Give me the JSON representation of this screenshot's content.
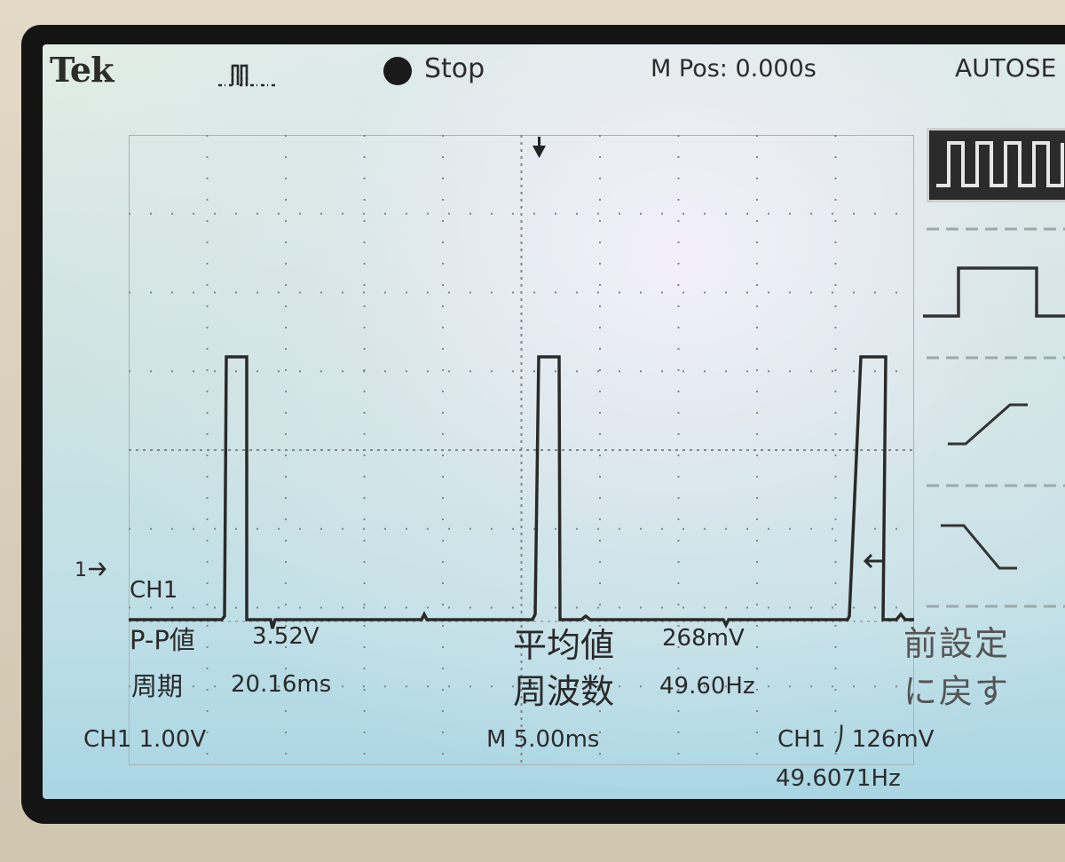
{
  "header": {
    "brand": "Tek",
    "acq_state": "Stop",
    "m_pos": "M Pos: 0.000s",
    "menu_title": "AUTOSE"
  },
  "channel_marker": "1",
  "measurements": {
    "channel": "CH1",
    "pp_label": "P-P値",
    "pp_value": "3.52V",
    "mean_label": "平均値",
    "mean_value": "268mV",
    "period_label": "周期",
    "period_value": "20.16ms",
    "freq_label": "周波数",
    "freq_value": "49.60Hz"
  },
  "side_menu": {
    "items": [
      "multi-cycle-square-wave-icon",
      "single-cycle-square-wave-icon",
      "rising-edge-icon",
      "falling-edge-icon"
    ],
    "restore_line1": "前設定",
    "restore_line2": "に戻す"
  },
  "footer": {
    "ch_scale": "CH1  1.00V",
    "time_scale": "M 5.00ms",
    "trigger": "CH1 ⎠ 126mV",
    "trigger_freq": "49.6071Hz"
  },
  "colors": {
    "trace": "#2a2a2a",
    "screen_bg": "#cfe3e2",
    "selected_menu": "#2b2b2b"
  }
}
